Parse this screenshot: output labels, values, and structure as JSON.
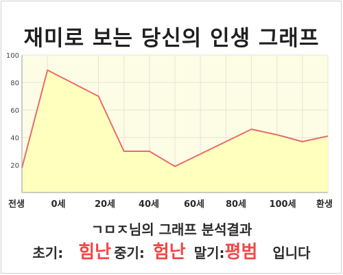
{
  "title": "재미로 보는 당신의 인생 그래프",
  "chart_data": {
    "type": "area",
    "categories": [
      "전생",
      "0세",
      "20세",
      "40세",
      "60세",
      "80세",
      "100세",
      "환생"
    ],
    "x": [
      -10,
      0,
      20,
      30,
      40,
      50,
      60,
      70,
      80,
      90,
      100,
      110
    ],
    "y": [
      18,
      89,
      70,
      30,
      30,
      19,
      28,
      37,
      46,
      42,
      37,
      41
    ],
    "ylim": [
      0,
      100
    ],
    "yticks": [
      20,
      40,
      60,
      80,
      100
    ],
    "grid": true,
    "colors": {
      "line": "#e86a6a",
      "fill": "#ffffbe",
      "plot_bg": "#fdfde6",
      "grid": "#e4e4d2"
    }
  },
  "result": {
    "name": "ㄱㅁㅈ",
    "suffix": "님의 그래프 분석결과",
    "early_label": "초기:",
    "early_value": "힘난",
    "middle_label": "중기:",
    "middle_value": "험난",
    "late_label": "말기:",
    "late_value": "평범",
    "ending": "입니다"
  }
}
